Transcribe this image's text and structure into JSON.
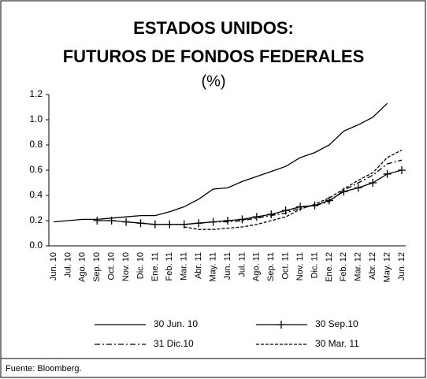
{
  "chart_data": {
    "type": "line",
    "title": "ESTADOS UNIDOS:",
    "subtitle": "FUTUROS DE FONDOS FEDERALES",
    "unit_label": "(%)",
    "source": "Fuente: Bloomberg.",
    "categories": [
      "Jun. 10",
      "Jul. 10",
      "Ago. 10",
      "Sep. 10",
      "Oct. 10",
      "Nov. 10",
      "Dic. 10",
      "Ene. 11",
      "Feb. 11",
      "Mar. 11",
      "Abr. 11",
      "May. 11",
      "Jun. 11",
      "Jul. 11",
      "Ago. 11",
      "Sep. 11",
      "Oct. 11",
      "Nov. 11",
      "Dic. 11",
      "Ene. 12",
      "Feb. 12",
      "Mar. 12",
      "Abr. 12",
      "May. 12",
      "Jun. 12"
    ],
    "series": [
      {
        "name": "30 Jun. 10",
        "color": "#000000",
        "line_style": "solid",
        "marker": "none",
        "values": [
          0.19,
          0.2,
          0.21,
          0.21,
          0.22,
          0.23,
          0.24,
          0.24,
          0.27,
          0.31,
          0.37,
          0.45,
          0.46,
          0.51,
          0.55,
          0.59,
          0.63,
          0.7,
          0.74,
          0.8,
          0.91,
          0.96,
          1.02,
          1.13,
          null
        ]
      },
      {
        "name": "30 Sep.10",
        "color": "#000000",
        "line_style": "solid",
        "marker": "plus",
        "values": [
          null,
          null,
          null,
          0.2,
          0.2,
          0.19,
          0.18,
          0.17,
          0.17,
          0.17,
          0.18,
          0.19,
          0.2,
          0.21,
          0.23,
          0.25,
          0.28,
          0.31,
          0.32,
          0.36,
          0.43,
          0.46,
          0.5,
          0.57,
          0.6
        ]
      },
      {
        "name": "31 Dic.10",
        "color": "#000000",
        "line_style": "dashdot",
        "marker": "none",
        "values": [
          null,
          null,
          null,
          null,
          null,
          null,
          0.18,
          0.17,
          0.17,
          0.17,
          0.18,
          0.19,
          0.19,
          0.2,
          0.22,
          0.24,
          0.26,
          0.3,
          0.32,
          0.35,
          0.44,
          0.5,
          0.56,
          0.65,
          0.68
        ]
      },
      {
        "name": "30 Mar. 11",
        "color": "#000000",
        "line_style": "dashed",
        "marker": "none",
        "values": [
          null,
          null,
          null,
          null,
          null,
          null,
          null,
          null,
          null,
          0.15,
          0.13,
          0.13,
          0.14,
          0.15,
          0.17,
          0.2,
          0.23,
          0.29,
          0.33,
          0.38,
          0.45,
          0.52,
          0.58,
          0.7,
          0.76
        ]
      }
    ],
    "ylim": [
      0,
      1.2
    ],
    "yticks": [
      {
        "value": 0,
        "label": "0.0"
      },
      0.2,
      0.4,
      0.6,
      0.8,
      {
        "value": 1,
        "label": "1.0"
      },
      1.2
    ],
    "grid": false
  }
}
